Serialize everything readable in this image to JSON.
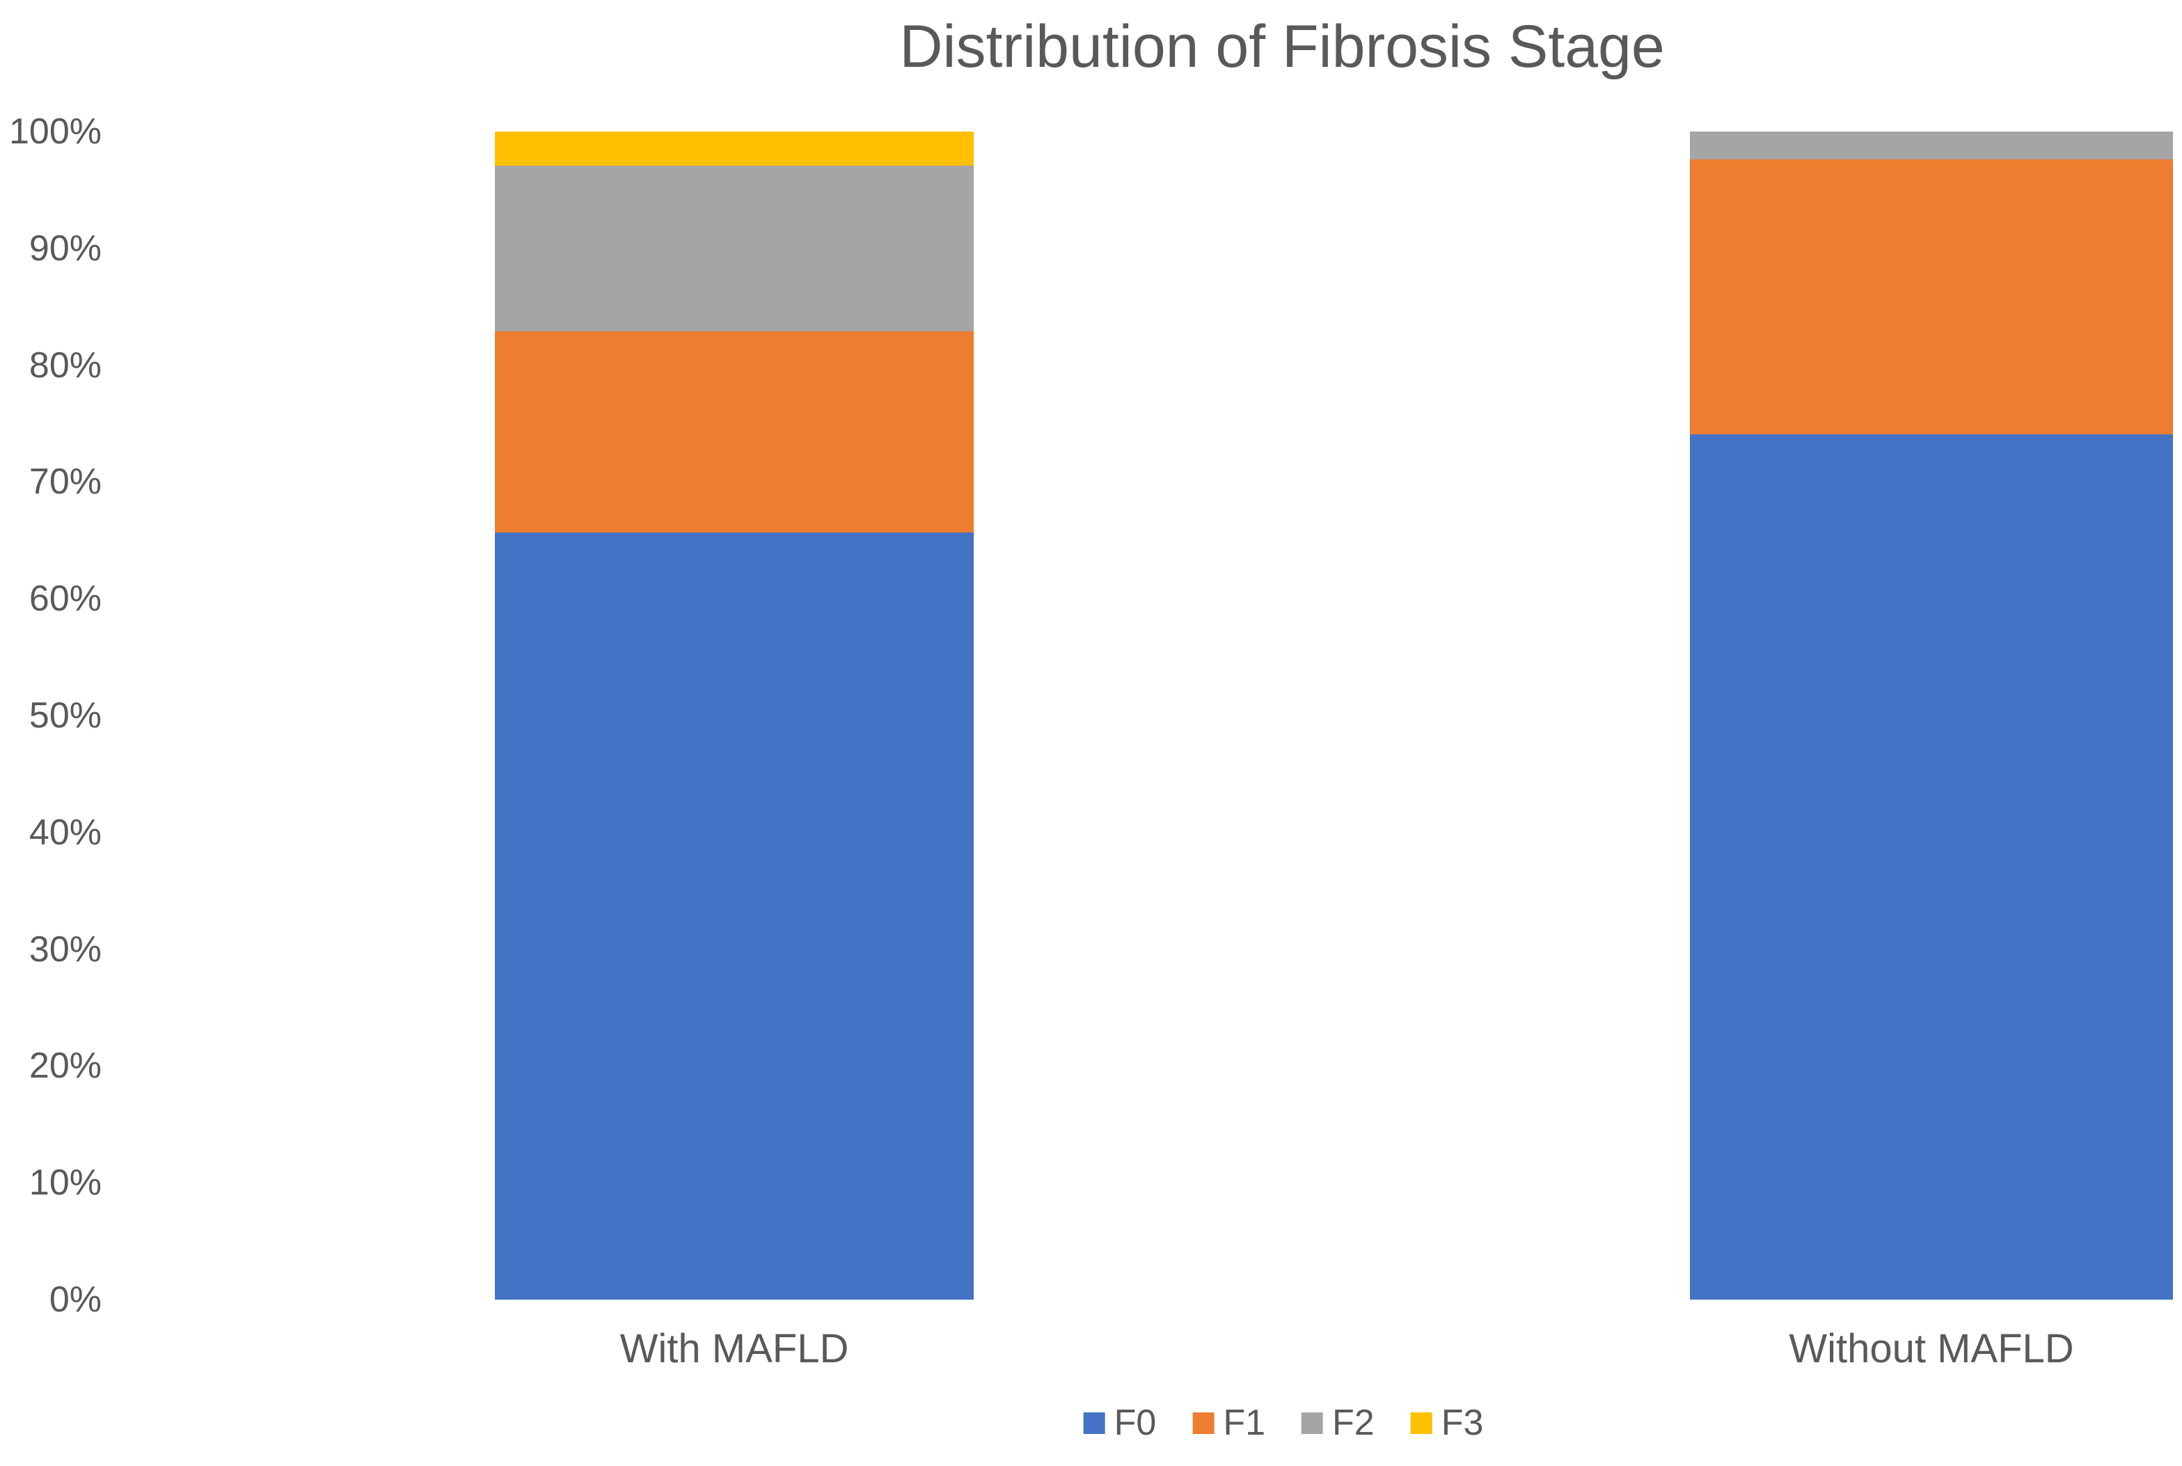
{
  "title": "Distribution of Fibrosis Stage",
  "chart_data": {
    "type": "bar",
    "stacked": true,
    "percent_stacked": true,
    "title": "Distribution of Fibrosis Stage",
    "categories": [
      "With MAFLD",
      "Without MAFLD"
    ],
    "series": [
      {
        "name": "F0",
        "color": "#4472C4",
        "values": [
          65.7,
          74.1
        ]
      },
      {
        "name": "F1",
        "color": "#ED7D31",
        "values": [
          17.2,
          23.5
        ]
      },
      {
        "name": "F2",
        "color": "#A5A5A5",
        "values": [
          14.2,
          2.4
        ]
      },
      {
        "name": "F3",
        "color": "#FFC000",
        "values": [
          2.9,
          0.0
        ]
      }
    ],
    "xlabel": "",
    "ylabel": "",
    "ylim": [
      0,
      100
    ],
    "yticks": [
      "0%",
      "10%",
      "20%",
      "30%",
      "40%",
      "50%",
      "60%",
      "70%",
      "80%",
      "90%",
      "100%"
    ],
    "grid": false,
    "axis_lines": false,
    "legend_position": "bottom",
    "text_color": "#595959",
    "background_color": "#FFFFFF"
  }
}
